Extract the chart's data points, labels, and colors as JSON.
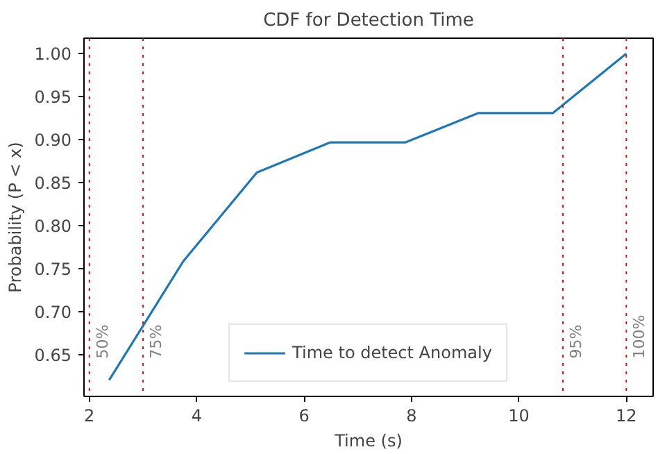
{
  "chart_data": {
    "type": "line",
    "title": "CDF for Detection Time",
    "xlabel": "Time (s)",
    "ylabel": "Probability (P < x)",
    "x": [
      2.37,
      3.75,
      5.12,
      6.49,
      7.89,
      9.24,
      10.63,
      12.0
    ],
    "series": [
      {
        "name": "Time to detect Anomaly",
        "color": "#1f77b4",
        "values": [
          0.621,
          0.759,
          0.862,
          0.897,
          0.897,
          0.931,
          0.931,
          1.0
        ]
      }
    ],
    "xlim": [
      1.9,
      12.5
    ],
    "ylim": [
      0.602,
      1.018
    ],
    "xticks": [
      2,
      4,
      6,
      8,
      10,
      12
    ],
    "yticks": [
      0.65,
      {
        "value": 0.7,
        "label": "0.70"
      },
      0.75,
      {
        "value": 0.8,
        "label": "0.80"
      },
      0.85,
      {
        "value": 0.9,
        "label": "0.90"
      },
      0.95,
      {
        "value": 1.0,
        "label": "1.00"
      }
    ],
    "ref_lines": [
      {
        "axis": "x",
        "value": 2.0,
        "color": "#ff0000",
        "line_style": "dotted"
      },
      {
        "axis": "x",
        "value": 3.0,
        "color": "#ff0000",
        "line_style": "dotted"
      },
      {
        "axis": "x",
        "value": 10.82,
        "color": "#ff0000",
        "line_style": "dotted"
      },
      {
        "axis": "x",
        "value": 12.0,
        "color": "#ff0000",
        "line_style": "dotted"
      }
    ],
    "annotations": [
      {
        "text": "50%",
        "x": 2.0,
        "y": 0.646
      },
      {
        "text": "75%",
        "x": 3.0,
        "y": 0.646
      },
      {
        "text": "95%",
        "x": 10.82,
        "y": 0.646
      },
      {
        "text": "100%",
        "x": 12.0,
        "y": 0.646
      }
    ],
    "legend": "bottom",
    "grid": false
  }
}
